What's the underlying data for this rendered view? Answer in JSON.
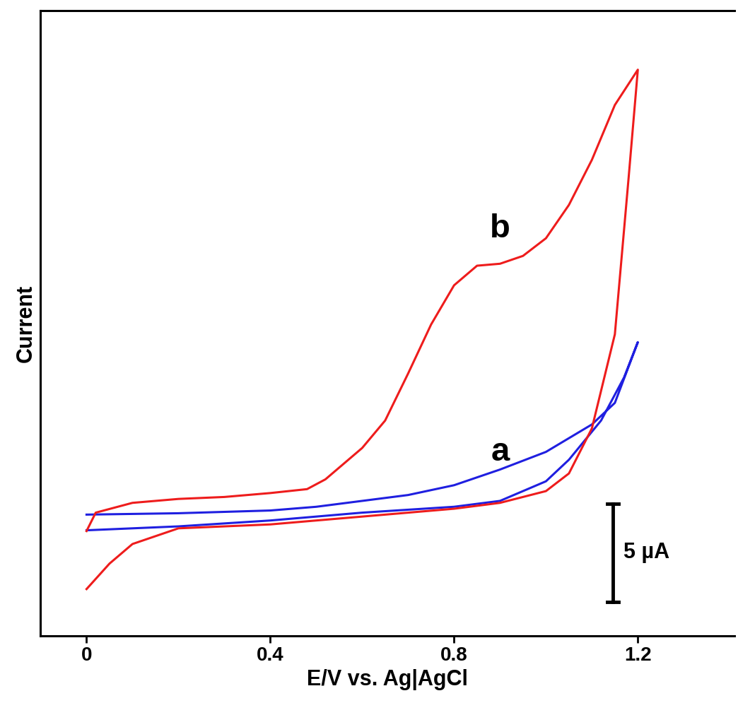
{
  "chart_data": {
    "type": "line",
    "x_label": "E/V vs. Ag|AgCl",
    "y_label": "Current",
    "xlim": [
      -0.1,
      1.41
    ],
    "ylim": [
      -5.1,
      26.8
    ],
    "xticks": [
      0,
      0.4,
      0.8,
      1.2
    ],
    "tick_labels": "x",
    "grid": false,
    "scale_bar": {
      "value": 5,
      "label": "5 µA"
    },
    "annotations": [
      {
        "text": "a",
        "x": 0.9,
        "y": 3.5
      },
      {
        "text": "b",
        "x": 0.9,
        "y": 14.9
      }
    ],
    "series": [
      {
        "name": "a",
        "color": "#1f1fe0",
        "x": [
          0,
          0.2,
          0.4,
          0.5,
          0.6,
          0.7,
          0.8,
          0.9,
          1.0,
          1.1,
          1.15,
          1.2,
          1.17,
          1.12,
          1.05,
          1.0,
          0.9,
          0.8,
          0.6,
          0.4,
          0.2,
          0
        ],
        "values": [
          1.1,
          1.17,
          1.31,
          1.5,
          1.8,
          2.1,
          2.6,
          3.4,
          4.3,
          5.7,
          6.8,
          9.9,
          8.1,
          5.9,
          3.9,
          2.8,
          1.8,
          1.5,
          1.2,
          0.8,
          0.5,
          0.3
        ]
      },
      {
        "name": "b",
        "color": "#ee1c1c",
        "x": [
          0,
          0.02,
          0.1,
          0.2,
          0.3,
          0.4,
          0.48,
          0.52,
          0.6,
          0.65,
          0.7,
          0.75,
          0.8,
          0.85,
          0.9,
          0.95,
          1.0,
          1.05,
          1.1,
          1.15,
          1.2,
          1.18,
          1.15,
          1.1,
          1.05,
          1.0,
          0.9,
          0.8,
          0.6,
          0.4,
          0.2,
          0.1,
          0.05,
          0
        ],
        "values": [
          0.26,
          1.2,
          1.7,
          1.9,
          2.0,
          2.2,
          2.4,
          2.9,
          4.5,
          5.9,
          8.3,
          10.8,
          12.8,
          13.8,
          13.9,
          14.3,
          15.2,
          16.9,
          19.2,
          22.0,
          23.8,
          18.3,
          10.3,
          5.5,
          3.2,
          2.3,
          1.7,
          1.4,
          1.0,
          0.6,
          0.4,
          -0.4,
          -1.4,
          -2.7
        ]
      }
    ]
  }
}
